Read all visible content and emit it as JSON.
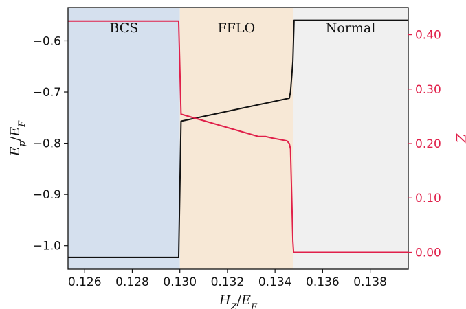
{
  "chart_data": {
    "type": "line",
    "title": "",
    "xlabel": "H_Z/E_F",
    "ylabel_left": "E_p/E_F",
    "ylabel_right": "Z",
    "xlim": [
      0.1253,
      0.1396
    ],
    "ylim_left": [
      -1.046,
      -0.535
    ],
    "ylim_right": [
      -0.031,
      0.45
    ],
    "x_ticks": [
      0.126,
      0.128,
      0.13,
      0.132,
      0.134,
      0.136,
      0.138
    ],
    "x_tick_labels": [
      "0.126",
      "0.128",
      "0.130",
      "0.132",
      "0.134",
      "0.136",
      "0.138"
    ],
    "y_left_ticks": [
      -0.6,
      -0.7,
      -0.8,
      -0.9,
      -1.0
    ],
    "y_left_tick_labels": [
      "−0.6",
      "−0.7",
      "−0.8",
      "−0.9",
      "−1.0"
    ],
    "y_right_ticks": [
      0.4,
      0.3,
      0.2,
      0.1,
      0.0
    ],
    "y_right_tick_labels": [
      "0.40",
      "0.30",
      "0.20",
      "0.10",
      "0.00"
    ],
    "grid": false,
    "regions": [
      {
        "label": "BCS",
        "x_start": 0.1253,
        "x_end": 0.13,
        "color": "#d5e0ee"
      },
      {
        "label": "FFLO",
        "x_start": 0.13,
        "x_end": 0.13475,
        "color": "#f7e8d6"
      },
      {
        "label": "Normal",
        "x_start": 0.13475,
        "x_end": 0.1396,
        "color": "#f0f0f0"
      }
    ],
    "series": [
      {
        "axis": "left",
        "color": "#111111",
        "x": [
          0.1253,
          0.12995,
          0.13005,
          0.1346,
          0.13465,
          0.13475,
          0.1348,
          0.1396
        ],
        "y": [
          -1.023,
          -1.023,
          -0.757,
          -0.712,
          -0.7,
          -0.64,
          -0.56,
          -0.56
        ]
      },
      {
        "axis": "right",
        "color": "#e0204a",
        "x": [
          0.1253,
          0.12995,
          0.13005,
          0.1333,
          0.1336,
          0.1339,
          0.1345,
          0.1346,
          0.13465,
          0.13475,
          0.13478,
          0.1396
        ],
        "y": [
          0.425,
          0.425,
          0.254,
          0.213,
          0.213,
          0.21,
          0.205,
          0.2,
          0.19,
          0.02,
          0.0,
          0.0
        ]
      }
    ],
    "left_axis_color": "#111111",
    "right_axis_color": "#e0204a"
  }
}
